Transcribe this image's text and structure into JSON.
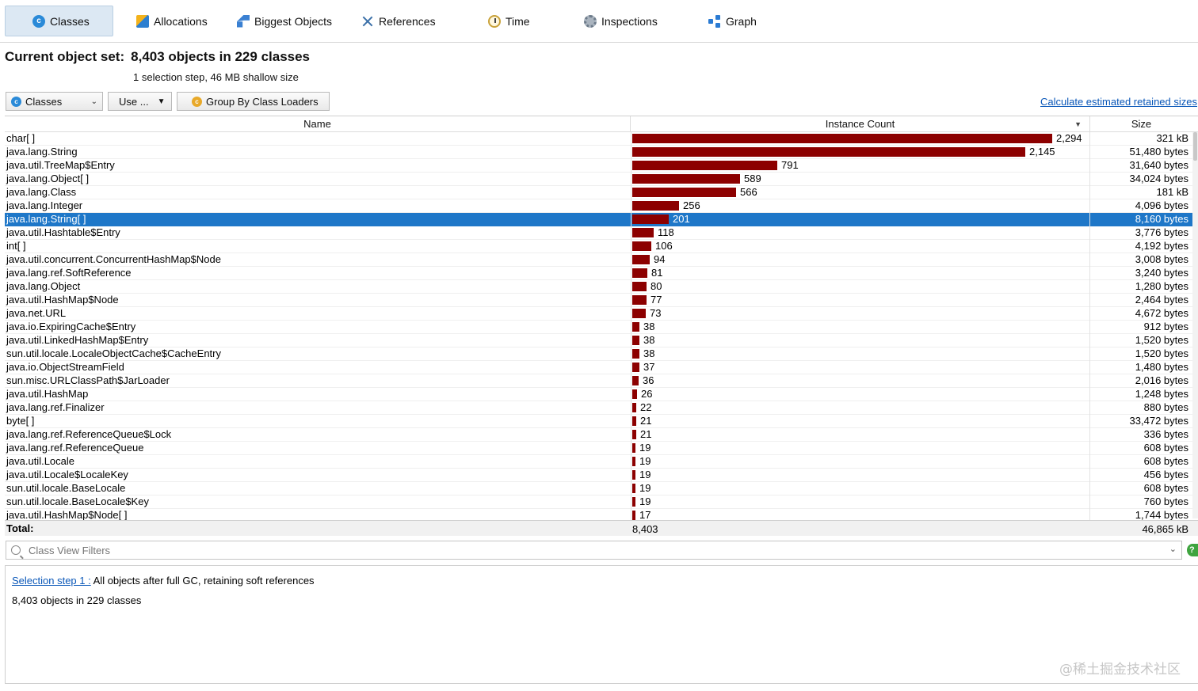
{
  "tabs": [
    {
      "label": "Classes",
      "icon": "classes-icon",
      "active": true
    },
    {
      "label": "Allocations",
      "icon": "allocations-icon"
    },
    {
      "label": "Biggest Objects",
      "icon": "biggest-objects-icon"
    },
    {
      "label": "References",
      "icon": "references-icon"
    },
    {
      "label": "Time",
      "icon": "time-icon"
    },
    {
      "label": "Inspections",
      "icon": "inspections-icon"
    },
    {
      "label": "Graph",
      "icon": "graph-icon"
    }
  ],
  "header": {
    "title_label": "Current object set:",
    "title_value": "8,403 objects in 229 classes",
    "subtitle": "1 selection step, 46 MB shallow size"
  },
  "toolbar": {
    "view_select": "Classes",
    "use_button": "Use ...",
    "group_button": "Group By Class Loaders",
    "calc_link": "Calculate estimated retained sizes"
  },
  "table": {
    "columns": {
      "name": "Name",
      "count": "Instance Count",
      "size": "Size"
    },
    "max_count": 2294,
    "selected_index": 6,
    "rows": [
      {
        "name": "char[ ]",
        "count": "2,294",
        "count_value": 2294,
        "size": "321 kB"
      },
      {
        "name": "java.lang.String",
        "count": "2,145",
        "count_value": 2145,
        "size": "51,480 bytes"
      },
      {
        "name": "java.util.TreeMap$Entry",
        "count": "791",
        "count_value": 791,
        "size": "31,640 bytes"
      },
      {
        "name": "java.lang.Object[ ]",
        "count": "589",
        "count_value": 589,
        "size": "34,024 bytes"
      },
      {
        "name": "java.lang.Class",
        "count": "566",
        "count_value": 566,
        "size": "181 kB"
      },
      {
        "name": "java.lang.Integer",
        "count": "256",
        "count_value": 256,
        "size": "4,096 bytes"
      },
      {
        "name": "java.lang.String[ ]",
        "count": "201",
        "count_value": 201,
        "size": "8,160 bytes"
      },
      {
        "name": "java.util.Hashtable$Entry",
        "count": "118",
        "count_value": 118,
        "size": "3,776 bytes"
      },
      {
        "name": "int[ ]",
        "count": "106",
        "count_value": 106,
        "size": "4,192 bytes"
      },
      {
        "name": "java.util.concurrent.ConcurrentHashMap$Node",
        "count": "94",
        "count_value": 94,
        "size": "3,008 bytes"
      },
      {
        "name": "java.lang.ref.SoftReference",
        "count": "81",
        "count_value": 81,
        "size": "3,240 bytes"
      },
      {
        "name": "java.lang.Object",
        "count": "80",
        "count_value": 80,
        "size": "1,280 bytes"
      },
      {
        "name": "java.util.HashMap$Node",
        "count": "77",
        "count_value": 77,
        "size": "2,464 bytes"
      },
      {
        "name": "java.net.URL",
        "count": "73",
        "count_value": 73,
        "size": "4,672 bytes"
      },
      {
        "name": "java.io.ExpiringCache$Entry",
        "count": "38",
        "count_value": 38,
        "size": "912 bytes"
      },
      {
        "name": "java.util.LinkedHashMap$Entry",
        "count": "38",
        "count_value": 38,
        "size": "1,520 bytes"
      },
      {
        "name": "sun.util.locale.LocaleObjectCache$CacheEntry",
        "count": "38",
        "count_value": 38,
        "size": "1,520 bytes"
      },
      {
        "name": "java.io.ObjectStreamField",
        "count": "37",
        "count_value": 37,
        "size": "1,480 bytes"
      },
      {
        "name": "sun.misc.URLClassPath$JarLoader",
        "count": "36",
        "count_value": 36,
        "size": "2,016 bytes"
      },
      {
        "name": "java.util.HashMap",
        "count": "26",
        "count_value": 26,
        "size": "1,248 bytes"
      },
      {
        "name": "java.lang.ref.Finalizer",
        "count": "22",
        "count_value": 22,
        "size": "880 bytes"
      },
      {
        "name": "byte[ ]",
        "count": "21",
        "count_value": 21,
        "size": "33,472 bytes"
      },
      {
        "name": "java.lang.ref.ReferenceQueue$Lock",
        "count": "21",
        "count_value": 21,
        "size": "336 bytes"
      },
      {
        "name": "java.lang.ref.ReferenceQueue",
        "count": "19",
        "count_value": 19,
        "size": "608 bytes"
      },
      {
        "name": "java.util.Locale",
        "count": "19",
        "count_value": 19,
        "size": "608 bytes"
      },
      {
        "name": "java.util.Locale$LocaleKey",
        "count": "19",
        "count_value": 19,
        "size": "456 bytes"
      },
      {
        "name": "sun.util.locale.BaseLocale",
        "count": "19",
        "count_value": 19,
        "size": "608 bytes"
      },
      {
        "name": "sun.util.locale.BaseLocale$Key",
        "count": "19",
        "count_value": 19,
        "size": "760 bytes"
      },
      {
        "name": "java.util.HashMap$Node[ ]",
        "count": "17",
        "count_value": 17,
        "size": "1,744 bytes"
      }
    ],
    "total": {
      "label": "Total:",
      "count": "8,403",
      "size": "46,865 kB"
    }
  },
  "filter": {
    "placeholder": "Class View Filters"
  },
  "panel": {
    "step_link": "Selection step 1 :",
    "step_text": "All objects after full GC, retaining soft references",
    "objects_text": "8,403 objects in 229 classes",
    "watermark": "@稀土掘金技术社区"
  },
  "colors": {
    "bar": "#8c0000",
    "selection": "#1e77c8",
    "link": "#0a57b8"
  }
}
